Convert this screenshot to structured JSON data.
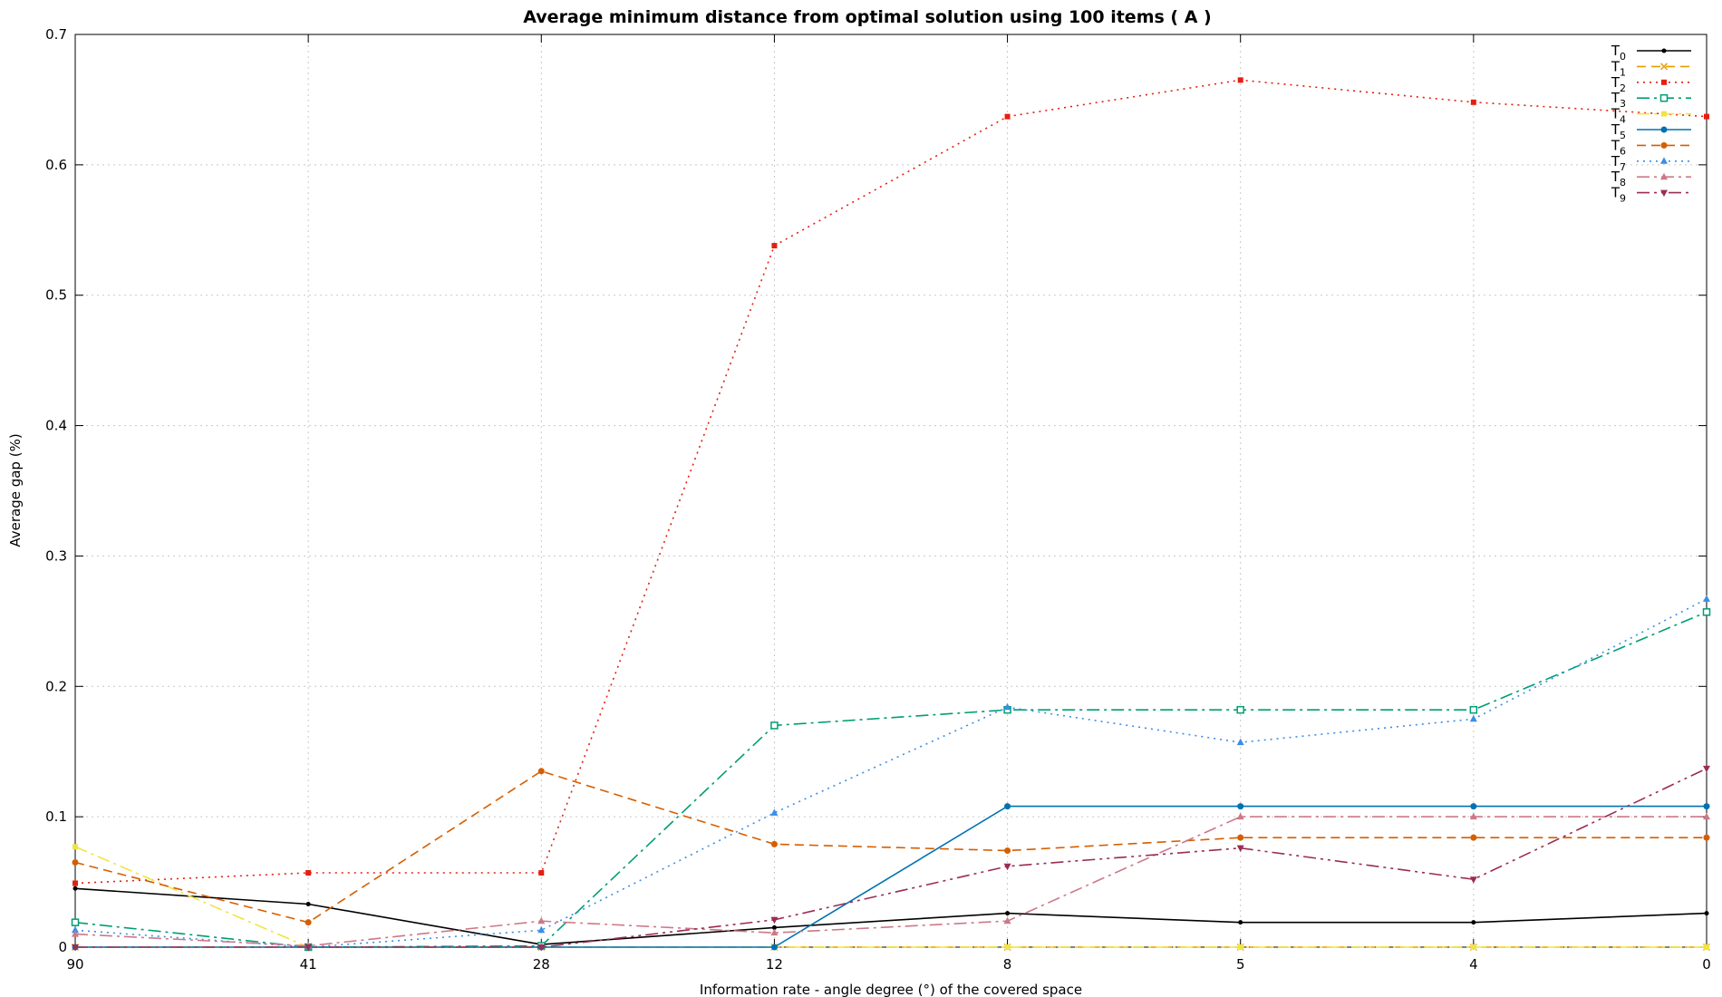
{
  "chart_data": {
    "type": "line",
    "title": "Average minimum distance from optimal solution using 100 items ( A )",
    "xlabel": "Information rate - angle degree (°)  of the covered space",
    "ylabel": "Average gap (%)",
    "categories": [
      "90",
      "41",
      "28",
      "12",
      "8",
      "5",
      "4",
      "0"
    ],
    "ylim": [
      0,
      0.7
    ],
    "yticks": [
      "0",
      "0.1",
      "0.2",
      "0.3",
      "0.4",
      "0.5",
      "0.6",
      "0.7"
    ],
    "grid": true,
    "legend_position": "top-right",
    "series": [
      {
        "label": "T",
        "sub": "0",
        "color": "#000000",
        "dash": "",
        "marker": "dot",
        "values": [
          0.045,
          0.033,
          0.002,
          0.015,
          0.026,
          0.019,
          0.019,
          0.026
        ]
      },
      {
        "label": "T",
        "sub": "1",
        "color": "#e69f00",
        "dash": "10,6",
        "marker": "cross",
        "values": [
          0.0,
          0.0,
          0.0,
          0.0,
          0.0,
          0.0,
          0.0,
          0.0
        ]
      },
      {
        "label": "T",
        "sub": "2",
        "color": "#e51e10",
        "dash": "2,5",
        "marker": "square",
        "values": [
          0.049,
          0.057,
          0.057,
          0.538,
          0.637,
          0.665,
          0.648,
          0.637
        ]
      },
      {
        "label": "T",
        "sub": "3",
        "color": "#009e73",
        "dash": "14,5,3,5",
        "marker": "open-square",
        "values": [
          0.019,
          0.0,
          0.001,
          0.17,
          0.182,
          0.182,
          0.182,
          0.257
        ]
      },
      {
        "label": "T",
        "sub": "4",
        "color": "#f0e442",
        "dash": "14,5,3,5",
        "marker": "square",
        "values": [
          0.077,
          0.0,
          0.0,
          0.0,
          0.0,
          0.0,
          0.0,
          0.0
        ]
      },
      {
        "label": "T",
        "sub": "5",
        "color": "#0072b2",
        "dash": "",
        "marker": "circle",
        "values": [
          0.0,
          0.0,
          0.0,
          0.0,
          0.108,
          0.108,
          0.108,
          0.108
        ]
      },
      {
        "label": "T",
        "sub": "6",
        "color": "#d55e00",
        "dash": "10,6",
        "marker": "circle",
        "values": [
          0.065,
          0.019,
          0.135,
          0.079,
          0.074,
          0.084,
          0.084,
          0.084
        ]
      },
      {
        "label": "T",
        "sub": "7",
        "color": "#3a8ee6",
        "dash": "2,5",
        "marker": "triangle",
        "values": [
          0.013,
          0.0,
          0.013,
          0.103,
          0.184,
          0.157,
          0.175,
          0.267
        ]
      },
      {
        "label": "T",
        "sub": "8",
        "color": "#cc7988",
        "dash": "14,5,3,5",
        "marker": "triangle",
        "values": [
          0.01,
          0.001,
          0.02,
          0.011,
          0.02,
          0.1,
          0.1,
          0.1
        ]
      },
      {
        "label": "T",
        "sub": "9",
        "color": "#9b2c55",
        "dash": "14,5,3,5,3,5",
        "marker": "triangle-down",
        "values": [
          0.0,
          0.0,
          0.0,
          0.021,
          0.062,
          0.076,
          0.052,
          0.137
        ]
      }
    ]
  }
}
